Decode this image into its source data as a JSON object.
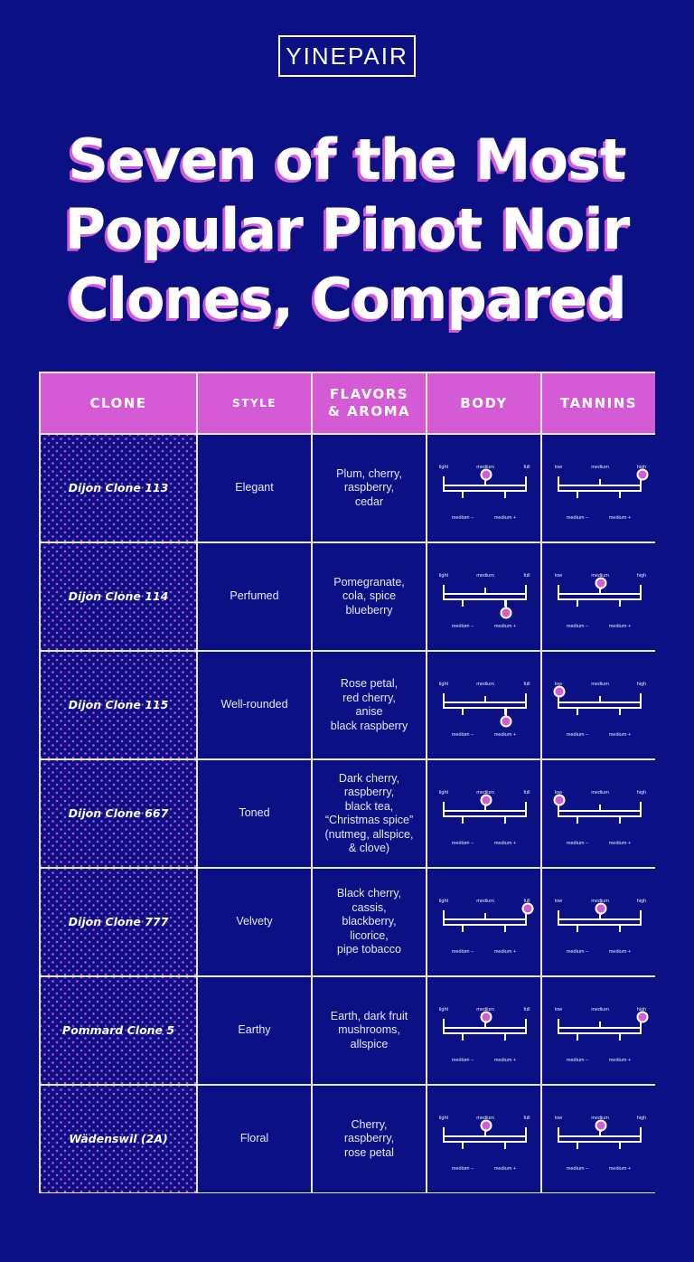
{
  "logo": {
    "text": "YINEPAIR"
  },
  "title": {
    "lines": [
      "Seven of the Most",
      "Popular Pinot Noir",
      "Clones, Compared"
    ]
  },
  "table": {
    "headers": [
      "CLONE",
      "STYLE",
      "FLAVORS\n& AROMA",
      "BODY",
      "TANNINS"
    ],
    "body_scale": {
      "left": "light",
      "center": "medium",
      "right": "full",
      "low_mid": "medium –",
      "high_mid": "medium +"
    },
    "tannin_scale": {
      "left": "low",
      "center": "medium",
      "right": "high",
      "low_mid": "medium –",
      "high_mid": "medium +"
    },
    "rows": [
      {
        "clone": "Dijon Clone 113",
        "style": "Elegant",
        "flavors": "Plum, cherry,\nraspberry,\ncedar",
        "body": "medium",
        "tannins": "high",
        "body_pos": 2,
        "tannins_pos": 4
      },
      {
        "clone": "Dijon Clone 114",
        "style": "Perfumed",
        "flavors": "Pomegranate,\ncola, spice\nblueberry",
        "body": "medium +",
        "tannins": "medium",
        "body_pos": 3,
        "tannins_pos": 2
      },
      {
        "clone": "Dijon Clone 115",
        "style": "Well-rounded",
        "flavors": "Rose petal,\nred cherry,\nanise\nblack raspberry",
        "body": "medium +",
        "tannins": "low",
        "body_pos": 3,
        "tannins_pos": 0
      },
      {
        "clone": "Dijon Clone 667",
        "style": "Toned",
        "flavors": "Dark cherry,\nraspberry,\nblack tea,\n“Christmas spice”\n(nutmeg, allspice,\n& clove)",
        "body": "medium",
        "tannins": "low",
        "body_pos": 2,
        "tannins_pos": 0
      },
      {
        "clone": "Dijon Clone 777",
        "style": "Velvety",
        "flavors": "Black cherry,\ncassis,\nblackberry,\nlicorice,\npipe tobacco",
        "body": "full",
        "tannins": "medium",
        "body_pos": 4,
        "tannins_pos": 2
      },
      {
        "clone": "Pommard Clone 5",
        "style": "Earthy",
        "flavors": "Earth, dark fruit\nmushrooms,\nallspice",
        "body": "medium",
        "tannins": "high",
        "body_pos": 2,
        "tannins_pos": 4
      },
      {
        "clone": "Wädenswil (2A)",
        "style": "Floral",
        "flavors": "Cherry,\nraspberry,\nrose petal",
        "body": "medium",
        "tannins": "medium",
        "body_pos": 2,
        "tannins_pos": 2
      }
    ]
  },
  "colors": {
    "background": "#0b1184",
    "accent": "#d45ad6",
    "grid": "#e8e8f4"
  },
  "chart_data": {
    "type": "table",
    "title": "Seven of the Most Popular Pinot Noir Clones, Compared",
    "columns": [
      "Clone",
      "Style",
      "Flavors & Aroma",
      "Body",
      "Tannins"
    ],
    "scale_positions": {
      "0": "light/low",
      "1": "medium –",
      "2": "medium",
      "3": "medium +",
      "4": "full/high"
    },
    "categories": [
      "Dijon Clone 113",
      "Dijon Clone 114",
      "Dijon Clone 115",
      "Dijon Clone 667",
      "Dijon Clone 777",
      "Pommard Clone 5",
      "Wädenswil (2A)"
    ],
    "series": [
      {
        "name": "Body",
        "values": [
          2,
          3,
          3,
          2,
          4,
          2,
          2
        ],
        "labels": [
          "medium",
          "medium +",
          "medium +",
          "medium",
          "full",
          "medium",
          "medium"
        ]
      },
      {
        "name": "Tannins",
        "values": [
          4,
          2,
          0,
          0,
          2,
          4,
          2
        ],
        "labels": [
          "high",
          "medium",
          "low",
          "low",
          "medium",
          "high",
          "medium"
        ]
      }
    ],
    "styles": [
      "Elegant",
      "Perfumed",
      "Well-rounded",
      "Toned",
      "Velvety",
      "Earthy",
      "Floral"
    ],
    "flavors": [
      "Plum, cherry, raspberry, cedar",
      "Pomegranate, cola, spice blueberry",
      "Rose petal, red cherry, anise black raspberry",
      "Dark cherry, raspberry, black tea, “Christmas spice” (nutmeg, allspice, & clove)",
      "Black cherry, cassis, blackberry, licorice, pipe tobacco",
      "Earth, dark fruit mushrooms, allspice",
      "Cherry, raspberry, rose petal"
    ],
    "ylim": [
      0,
      4
    ]
  }
}
